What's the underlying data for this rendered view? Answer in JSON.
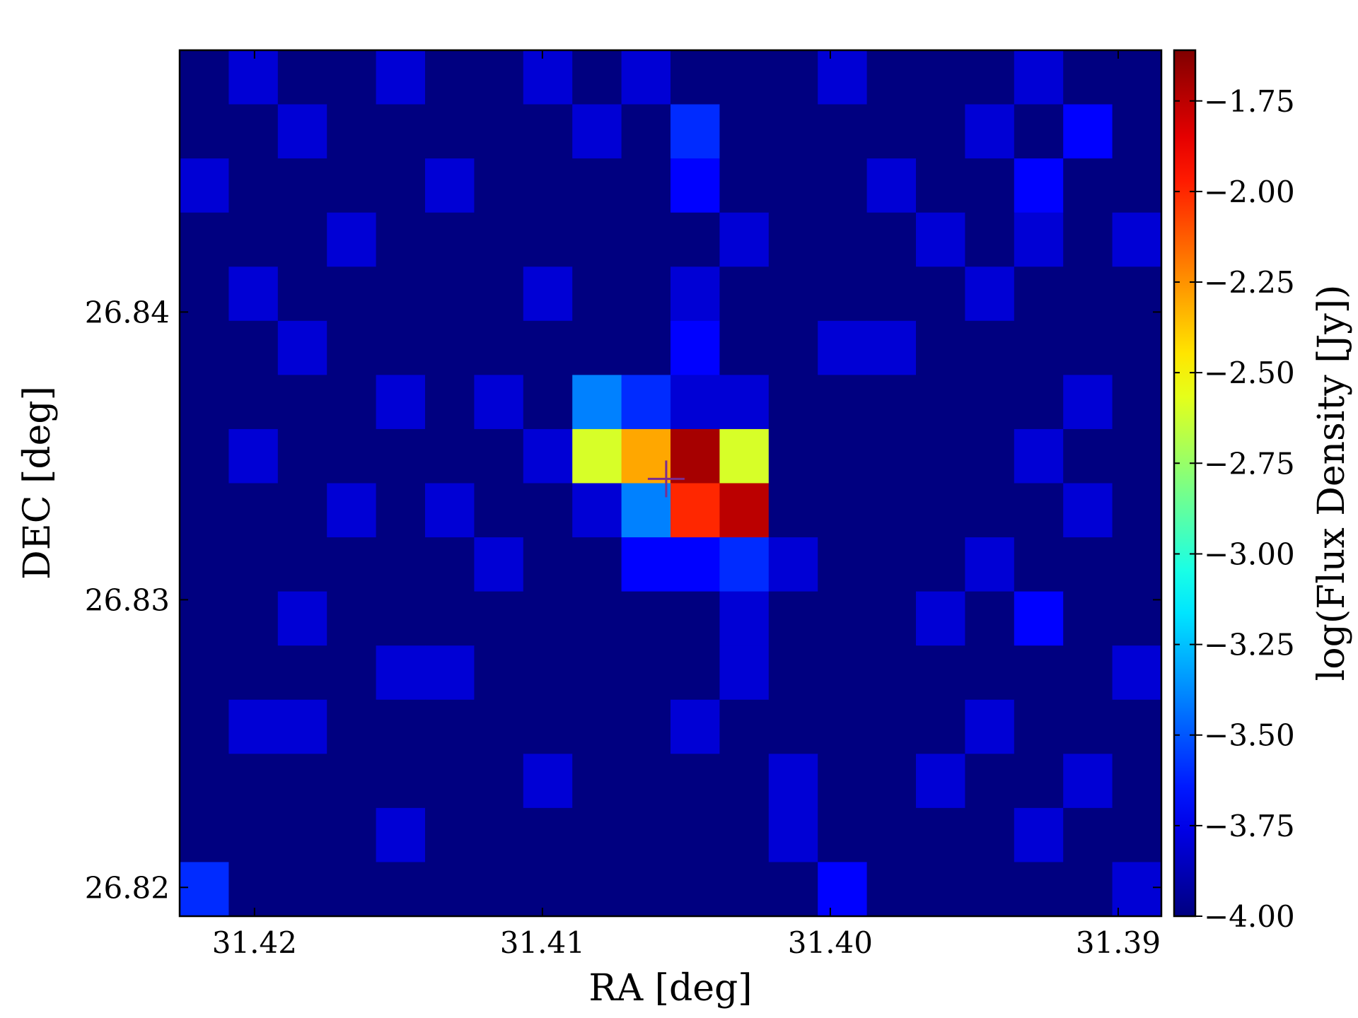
{
  "chart_data": {
    "type": "heatmap",
    "xlabel": "RA [deg]",
    "ylabel": "DEC [deg]",
    "colorbar_label": "log(Flux Density [Jy])",
    "colormap": "jet",
    "xlim": [
      31.4226,
      31.3885
    ],
    "ylim": [
      26.819,
      26.8491
    ],
    "xticks": [
      31.42,
      31.41,
      {
        "value": 31.4,
        "label": "31.40"
      },
      31.39
    ],
    "yticks": [
      26.82,
      26.83,
      26.84
    ],
    "clim": [
      -4.0,
      -1.61
    ],
    "cticks": [
      {
        "value": -4.0,
        "label": "−4.00"
      },
      {
        "value": -3.75,
        "label": "−3.75"
      },
      {
        "value": -3.5,
        "label": "−3.50"
      },
      {
        "value": -3.25,
        "label": "−3.25"
      },
      {
        "value": -3.0,
        "label": "−3.00"
      },
      {
        "value": -2.75,
        "label": "−2.75"
      },
      {
        "value": -2.5,
        "label": "−2.50"
      },
      {
        "value": -2.25,
        "label": "−2.25"
      },
      {
        "value": -2.0,
        "label": "−2.00"
      },
      {
        "value": -1.75,
        "label": "−1.75"
      }
    ],
    "marker": {
      "x": 31.4057,
      "y": 26.8342,
      "color": "#7b2d8e"
    },
    "z": [
      [
        -4,
        -3.8,
        -4,
        -4,
        -3.8,
        -4,
        -4,
        -3.8,
        -4,
        -3.8,
        -4,
        -4,
        -4,
        -3.8,
        -4,
        -4,
        -4,
        -3.8,
        -4,
        -4
      ],
      [
        -4,
        -4,
        -3.8,
        -4,
        -4,
        -4,
        -4,
        -4,
        -3.8,
        -4,
        -3.6,
        -4,
        -4,
        -4,
        -4,
        -4,
        -3.8,
        -4,
        -3.7,
        -4
      ],
      [
        -3.8,
        -4,
        -4,
        -4,
        -4,
        -3.8,
        -4,
        -4,
        -4,
        -4,
        -3.7,
        -4,
        -4,
        -4,
        -3.8,
        -4,
        -4,
        -3.7,
        -4,
        -4
      ],
      [
        -4,
        -4,
        -4,
        -3.8,
        -4,
        -4,
        -4,
        -4,
        -4,
        -4,
        -4,
        -3.8,
        -4,
        -4,
        -4,
        -3.8,
        -4,
        -3.8,
        -4,
        -3.8
      ],
      [
        -4,
        -3.8,
        -4,
        -4,
        -4,
        -4,
        -4,
        -3.8,
        -4,
        -4,
        -3.8,
        -4,
        -4,
        -4,
        -4,
        -4,
        -3.8,
        -4,
        -4,
        -4
      ],
      [
        -4,
        -4,
        -3.8,
        -4,
        -4,
        -4,
        -4,
        -4,
        -4,
        -4,
        -3.7,
        -4,
        -4,
        -3.8,
        -3.8,
        -4,
        -4,
        -4,
        -4,
        -4
      ],
      [
        -4,
        -4,
        -4,
        -4,
        -3.8,
        -4,
        -3.8,
        -4,
        -3.4,
        -3.6,
        -3.8,
        -3.8,
        -4,
        -4,
        -4,
        -4,
        -4,
        -4,
        -3.8,
        -4
      ],
      [
        -4,
        -3.8,
        -4,
        -4,
        -4,
        -4,
        -4,
        -3.8,
        -2.6,
        -2.3,
        -1.7,
        -2.6,
        -4,
        -4,
        -4,
        -4,
        -4,
        -3.8,
        -4,
        -4
      ],
      [
        -4,
        -4,
        -4,
        -3.8,
        -4,
        -3.8,
        -4,
        -4,
        -3.8,
        -3.4,
        -2.0,
        -1.75,
        -4,
        -4,
        -4,
        -4,
        -4,
        -4,
        -3.8,
        -4
      ],
      [
        -4,
        -4,
        -4,
        -4,
        -4,
        -4,
        -3.8,
        -4,
        -4,
        -3.7,
        -3.7,
        -3.6,
        -3.8,
        -4,
        -4,
        -4,
        -3.8,
        -4,
        -4,
        -4
      ],
      [
        -4,
        -4,
        -3.8,
        -4,
        -4,
        -4,
        -4,
        -4,
        -4,
        -4,
        -4,
        -3.8,
        -4,
        -4,
        -4,
        -3.8,
        -4,
        -3.7,
        -4,
        -4
      ],
      [
        -4,
        -4,
        -4,
        -4,
        -3.8,
        -3.8,
        -4,
        -4,
        -4,
        -4,
        -4,
        -3.8,
        -4,
        -4,
        -4,
        -4,
        -4,
        -4,
        -4,
        -3.8
      ],
      [
        -4,
        -3.8,
        -3.8,
        -4,
        -4,
        -4,
        -4,
        -4,
        -4,
        -4,
        -3.8,
        -4,
        -4,
        -4,
        -4,
        -4,
        -3.8,
        -4,
        -4,
        -4
      ],
      [
        -4,
        -4,
        -4,
        -4,
        -4,
        -4,
        -4,
        -3.8,
        -4,
        -4,
        -4,
        -4,
        -3.8,
        -4,
        -4,
        -3.8,
        -4,
        -4,
        -3.8,
        -4
      ],
      [
        -4,
        -4,
        -4,
        -4,
        -3.8,
        -4,
        -4,
        -4,
        -4,
        -4,
        -4,
        -4,
        -3.8,
        -4,
        -4,
        -4,
        -4,
        -3.8,
        -4,
        -4
      ],
      [
        -3.6,
        -4,
        -4,
        -4,
        -4,
        -4,
        -4,
        -4,
        -4,
        -4,
        -4,
        -4,
        -4,
        -3.7,
        -4,
        -4,
        -4,
        -4,
        -4,
        -3.8
      ]
    ]
  }
}
